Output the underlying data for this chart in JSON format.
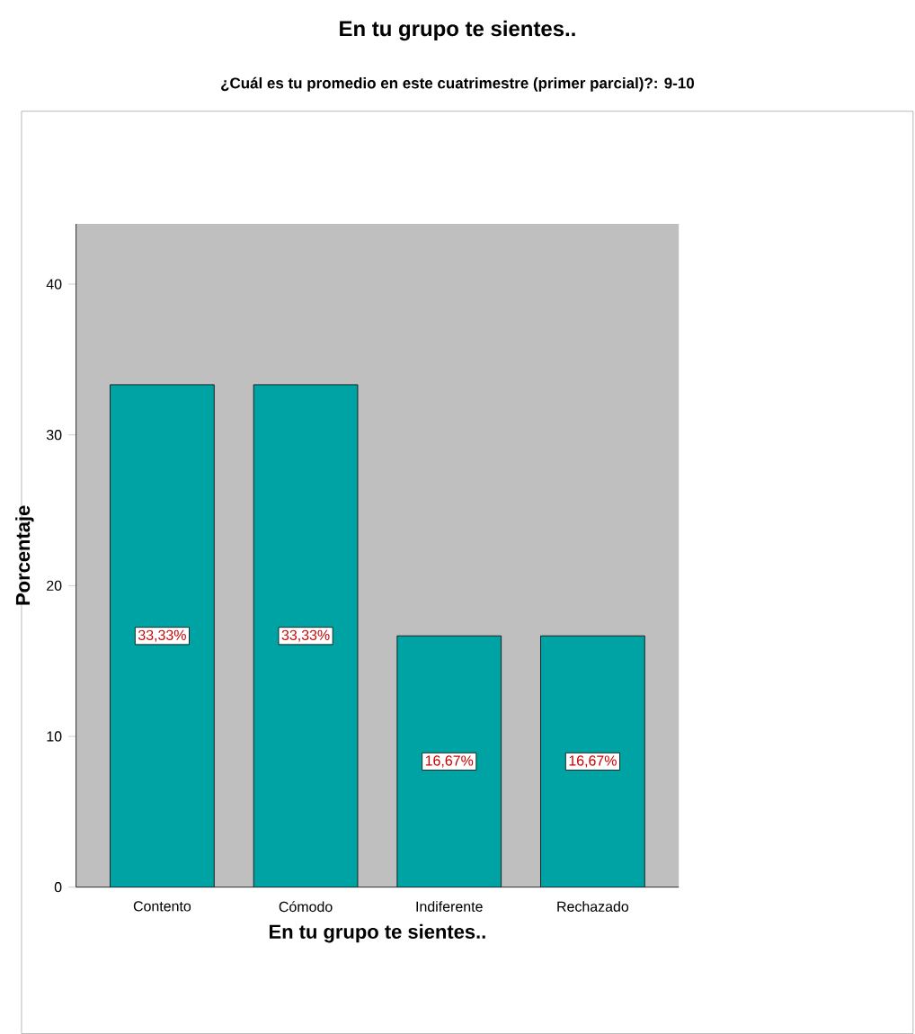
{
  "chart_data": {
    "type": "bar",
    "title": "En tu grupo te sientes..",
    "subtitle": "¿Cuál es tu promedio en este cuatrimestre (primer parcial)?: 9-10",
    "xlabel": "En tu grupo te sientes..",
    "ylabel": "Porcentaje",
    "categories": [
      "Contento",
      "Cómodo",
      "Indiferente",
      "Rechazado"
    ],
    "values": [
      33.33,
      33.33,
      16.67,
      16.67
    ],
    "value_labels": [
      "33,33%",
      "33,33%",
      "16,67%",
      "16,67%"
    ],
    "color": "#00a3a3",
    "ylim": [
      0,
      44
    ],
    "yticks": [
      0,
      10,
      20,
      30,
      40
    ],
    "grid": false
  }
}
